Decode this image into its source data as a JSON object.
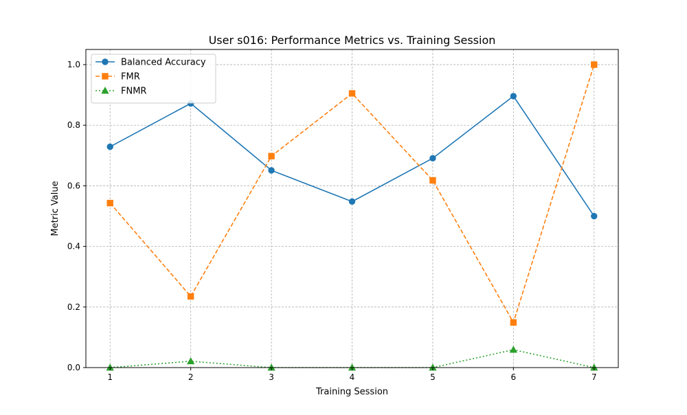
{
  "chart_data": {
    "type": "line",
    "title": "User s016: Performance Metrics vs. Training Session",
    "xlabel": "Training Session",
    "ylabel": "Metric Value",
    "x": [
      1,
      2,
      3,
      4,
      5,
      6,
      7
    ],
    "xlim": [
      0.7,
      7.3
    ],
    "ylim": [
      0,
      1.05
    ],
    "x_ticks": [
      1,
      2,
      3,
      4,
      5,
      6,
      7
    ],
    "y_ticks": [
      0.0,
      0.2,
      0.4,
      0.6,
      0.8,
      1.0
    ],
    "grid": true,
    "legend_position": "top-left",
    "series": [
      {
        "name": "Balanced Accuracy",
        "values": [
          0.729,
          0.872,
          0.651,
          0.548,
          0.691,
          0.896,
          0.5
        ],
        "color": "#1f77b4",
        "line_style": "solid",
        "marker": "circle"
      },
      {
        "name": "FMR",
        "values": [
          0.543,
          0.235,
          0.698,
          0.905,
          0.618,
          0.149,
          1.0
        ],
        "color": "#ff7f0e",
        "line_style": "dashed",
        "marker": "square"
      },
      {
        "name": "FNMR",
        "values": [
          0.0,
          0.021,
          0.0,
          0.0,
          0.0,
          0.059,
          0.0
        ],
        "color": "#2ca02c",
        "line_style": "dotted",
        "marker": "triangle"
      }
    ]
  }
}
